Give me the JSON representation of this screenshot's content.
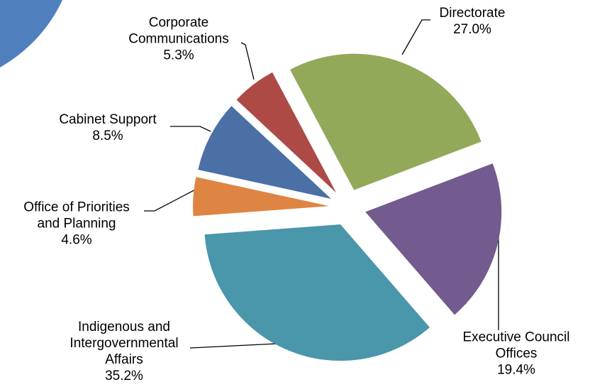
{
  "chart_data": {
    "type": "pie",
    "categories": [
      "Directorate",
      "Executive Council Offices",
      "Indigenous and Intergovernmental Affairs",
      "Office of Priorities and Planning",
      "Cabinet Support",
      "Corporate Communications"
    ],
    "values": [
      27.0,
      19.4,
      35.2,
      4.6,
      8.5,
      5.3
    ],
    "value_labels": [
      "27.0%",
      "19.4%",
      "35.2%",
      "4.6%",
      "8.5%",
      "5.3%"
    ],
    "colors": [
      "#93a95a",
      "#735a8f",
      "#4a96aa",
      "#de8544",
      "#4a70a6",
      "#ad4a46"
    ]
  }
}
